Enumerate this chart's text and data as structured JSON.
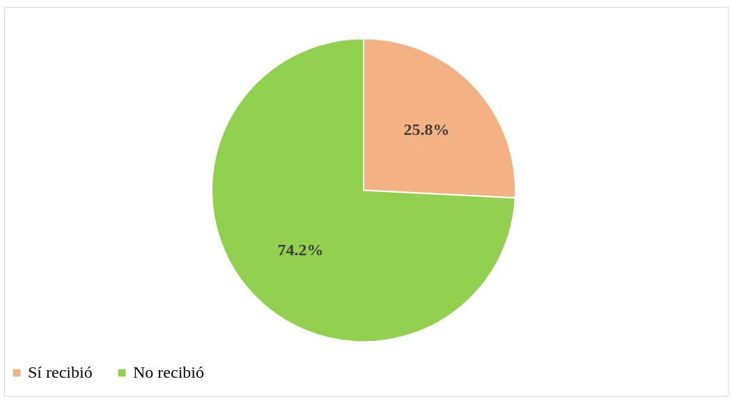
{
  "chart_data": {
    "type": "pie",
    "categories": [
      "Sí recibió",
      "No recibió"
    ],
    "values": [
      25.8,
      74.2
    ],
    "colors": [
      "#f4b183",
      "#92d050"
    ],
    "value_labels": [
      "25.8%",
      "74.2%"
    ],
    "legend": "bottom"
  }
}
